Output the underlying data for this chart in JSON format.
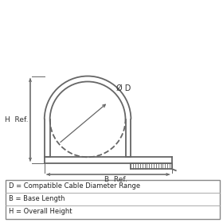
{
  "bg_color": "#ffffff",
  "line_color": "#666666",
  "legend_lines": [
    "D = Compatible Cable Diameter Range",
    "B = Base Length",
    "H = Overall Height"
  ],
  "od_label": "Ø D",
  "h_label": "H  Ref.",
  "b_label": "B  Ref."
}
